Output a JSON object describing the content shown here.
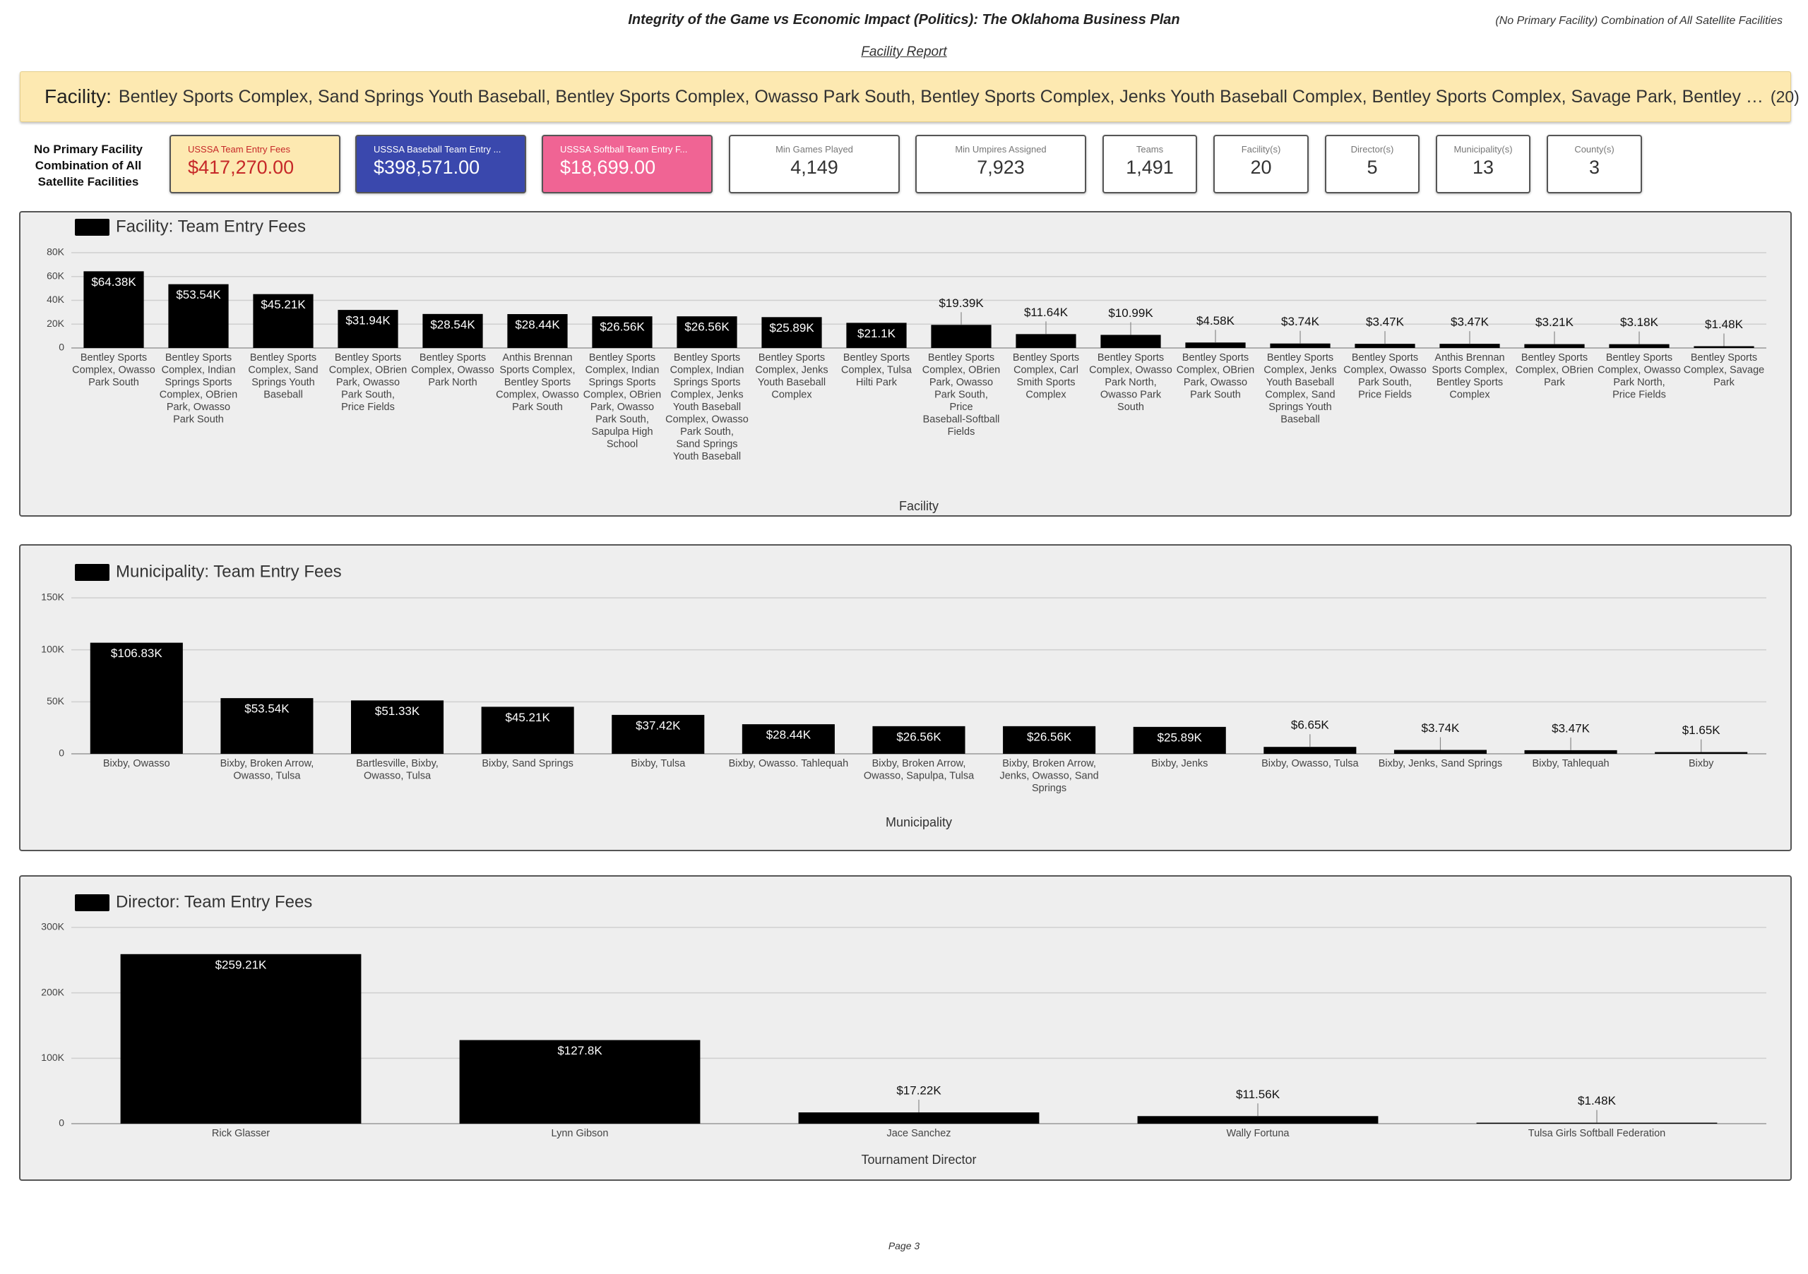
{
  "header": {
    "title": "Integrity of the Game vs Economic Impact (Politics): The Oklahoma Business Plan",
    "context": "(No Primary Facility) Combination of All Satellite Facilities",
    "report": "Facility Report"
  },
  "filter": {
    "label": "Facility:",
    "value": "Bentley Sports Complex, Sand Springs Youth Baseball, Bentley Sports Complex, Owasso Park South, Bentley Sports Complex, Jenks Youth Baseball Complex, Bentley Sports Complex, Savage Park, Bentley …",
    "count": "(20)"
  },
  "scorecards": {
    "caption": "No Primary Facility Combination of All Satellite Facilities",
    "cards": [
      {
        "label": "USSSA Team Entry Fees",
        "value": "$417,270.00"
      },
      {
        "label": "USSSA Baseball Team Entry ...",
        "value": "$398,571.00"
      },
      {
        "label": "USSSA Softball Team Entry F...",
        "value": "$18,699.00"
      },
      {
        "label": "Min Games Played",
        "value": "4,149"
      },
      {
        "label": "Min Umpires Assigned",
        "value": "7,923"
      },
      {
        "label": "Teams",
        "value": "1,491"
      },
      {
        "label": "Facility(s)",
        "value": "20"
      },
      {
        "label": "Director(s)",
        "value": "5"
      },
      {
        "label": "Municipality(s)",
        "value": "13"
      },
      {
        "label": "County(s)",
        "value": "3"
      }
    ]
  },
  "chart_data": [
    {
      "type": "bar",
      "xlabel": "Facility",
      "categories": [
        "Bentley Sports Complex, Owasso Park South",
        "Bentley Sports Complex, Indian Springs Sports Complex, OBrien Park, Owasso Park South",
        "Bentley Sports Complex, Sand Springs Youth Baseball",
        "Bentley Sports Complex, OBrien Park, Owasso Park South, Price Fields",
        "Bentley Sports Complex, Owasso Park North",
        "Anthis Brennan Sports Complex, Bentley Sports Complex, Owasso Park South",
        "Bentley Sports Complex, Indian Springs Sports Complex, OBrien Park, Owasso Park South, Sapulpa High School",
        "Bentley Sports Complex, Indian Springs Sports Complex, Jenks Youth Baseball Complex, Owasso Park South, Sand Springs Youth Baseball",
        "Bentley Sports Complex, Jenks Youth Baseball Complex",
        "Bentley Sports Complex, Tulsa Hilti Park",
        "Bentley Sports Complex, OBrien Park, Owasso Park South, Price Baseball-Softball Fields",
        "Bentley Sports Complex, Carl Smith Sports Complex",
        "Bentley Sports Complex, Owasso Park North, Owasso Park South",
        "Bentley Sports Complex, OBrien Park, Owasso Park South",
        "Bentley Sports Complex, Jenks Youth Baseball Complex, Sand Springs Youth Baseball",
        "Bentley Sports Complex, Owasso Park South, Price Fields",
        "Anthis Brennan Sports Complex, Bentley Sports Complex",
        "Bentley Sports Complex, OBrien Park",
        "Bentley Sports Complex, Owasso Park North, Price Fields",
        "Bentley Sports Complex, Savage Park"
      ],
      "series": [
        {
          "name": "Facility: Team Entry Fees",
          "color": "#000000",
          "values": [
            64380,
            53540,
            45210,
            31940,
            28540,
            28440,
            26560,
            26560,
            25890,
            21100,
            19390,
            11640,
            10990,
            4580,
            3740,
            3470,
            3470,
            3210,
            3180,
            1480
          ],
          "value_labels": [
            "$64.38K",
            "$53.54K",
            "$45.21K",
            "$31.94K",
            "$28.54K",
            "$28.44K",
            "$26.56K",
            "$26.56K",
            "$25.89K",
            "$21.1K",
            "$19.39K",
            "$11.64K",
            "$10.99K",
            "$4.58K",
            "$3.74K",
            "$3.47K",
            "$3.47K",
            "$3.21K",
            "$3.18K",
            "$1.48K"
          ]
        }
      ],
      "ylim": [
        0,
        80000
      ],
      "yticks": [
        0,
        {
          "value": 20000,
          "label": "20K"
        },
        {
          "value": 40000,
          "label": "40K"
        },
        {
          "value": 60000,
          "label": "60K"
        },
        {
          "value": 80000,
          "label": "80K"
        }
      ],
      "grid": true
    },
    {
      "type": "bar",
      "xlabel": "Municipality",
      "categories": [
        "Bixby, Owasso",
        "Bixby, Broken Arrow, Owasso, Tulsa",
        "Bartlesville, Bixby, Owasso, Tulsa",
        "Bixby, Sand Springs",
        "Bixby, Tulsa",
        "Bixby, Owasso. Tahlequah",
        "Bixby, Broken Arrow, Owasso, Sapulpa, Tulsa",
        "Bixby, Broken Arrow, Jenks, Owasso, Sand Springs",
        "Bixby, Jenks",
        "Bixby, Owasso, Tulsa",
        "Bixby, Jenks, Sand Springs",
        "Bixby, Tahlequah",
        "Bixby"
      ],
      "series": [
        {
          "name": "Municipality: Team Entry Fees",
          "color": "#000000",
          "values": [
            106830,
            53540,
            51330,
            45210,
            37420,
            28440,
            26560,
            26560,
            25890,
            6650,
            3740,
            3470,
            1650
          ],
          "value_labels": [
            "$106.83K",
            "$53.54K",
            "$51.33K",
            "$45.21K",
            "$37.42K",
            "$28.44K",
            "$26.56K",
            "$26.56K",
            "$25.89K",
            "$6.65K",
            "$3.74K",
            "$3.47K",
            "$1.65K"
          ]
        }
      ],
      "ylim": [
        0,
        150000
      ],
      "yticks": [
        0,
        {
          "value": 50000,
          "label": "50K"
        },
        {
          "value": 100000,
          "label": "100K"
        },
        {
          "value": 150000,
          "label": "150K"
        }
      ],
      "grid": true
    },
    {
      "type": "bar",
      "xlabel": "Tournament Director",
      "categories": [
        "Rick Glasser",
        "Lynn Gibson",
        "Jace Sanchez",
        "Wally Fortuna",
        "Tulsa Girls Softball Federation"
      ],
      "series": [
        {
          "name": "Director: Team Entry Fees",
          "color": "#000000",
          "values": [
            259210,
            127800,
            17220,
            11560,
            1480
          ],
          "value_labels": [
            "$259.21K",
            "$127.8K",
            "$17.22K",
            "$11.56K",
            "$1.48K"
          ]
        }
      ],
      "ylim": [
        0,
        300000
      ],
      "yticks": [
        0,
        {
          "value": 100000,
          "label": "100K"
        },
        {
          "value": 200000,
          "label": "200K"
        },
        {
          "value": 300000,
          "label": "300K"
        }
      ],
      "grid": true
    }
  ],
  "footer": {
    "page": "Page 3"
  }
}
